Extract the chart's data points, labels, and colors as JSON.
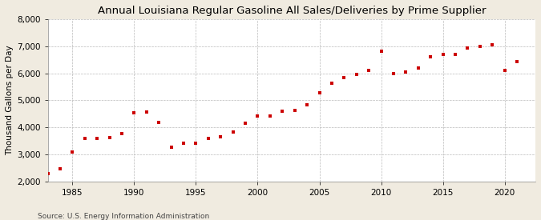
{
  "title": "Annual Louisiana Regular Gasoline All Sales/Deliveries by Prime Supplier",
  "ylabel": "Thousand Gallons per Day",
  "source": "Source: U.S. Energy Information Administration",
  "background_color": "#f0ebe0",
  "plot_background_color": "#ffffff",
  "marker_color": "#cc0000",
  "marker": "s",
  "marker_size": 3.5,
  "xlim": [
    1983,
    2022.5
  ],
  "ylim": [
    2000,
    8000
  ],
  "yticks": [
    2000,
    3000,
    4000,
    5000,
    6000,
    7000,
    8000
  ],
  "xticks": [
    1985,
    1990,
    1995,
    2000,
    2005,
    2010,
    2015,
    2020
  ],
  "years": [
    1983,
    1984,
    1985,
    1986,
    1987,
    1988,
    1989,
    1990,
    1991,
    1992,
    1993,
    1994,
    1995,
    1996,
    1997,
    1998,
    1999,
    2000,
    2001,
    2002,
    2003,
    2004,
    2005,
    2006,
    2007,
    2008,
    2009,
    2010,
    2011,
    2012,
    2013,
    2014,
    2015,
    2016,
    2017,
    2018,
    2019,
    2020,
    2021
  ],
  "values": [
    2300,
    2480,
    3080,
    3600,
    3590,
    3640,
    3780,
    4550,
    4570,
    4190,
    3280,
    3430,
    3430,
    3590,
    3650,
    3820,
    4160,
    4410,
    4430,
    4600,
    4640,
    4840,
    5290,
    5620,
    5830,
    5950,
    6100,
    6820,
    5990,
    6060,
    6200,
    6610,
    6690,
    6690,
    6940,
    6990,
    7060,
    6100,
    6420
  ],
  "title_fontsize": 9.5,
  "ylabel_fontsize": 7.5,
  "tick_fontsize": 7.5,
  "source_fontsize": 6.5
}
